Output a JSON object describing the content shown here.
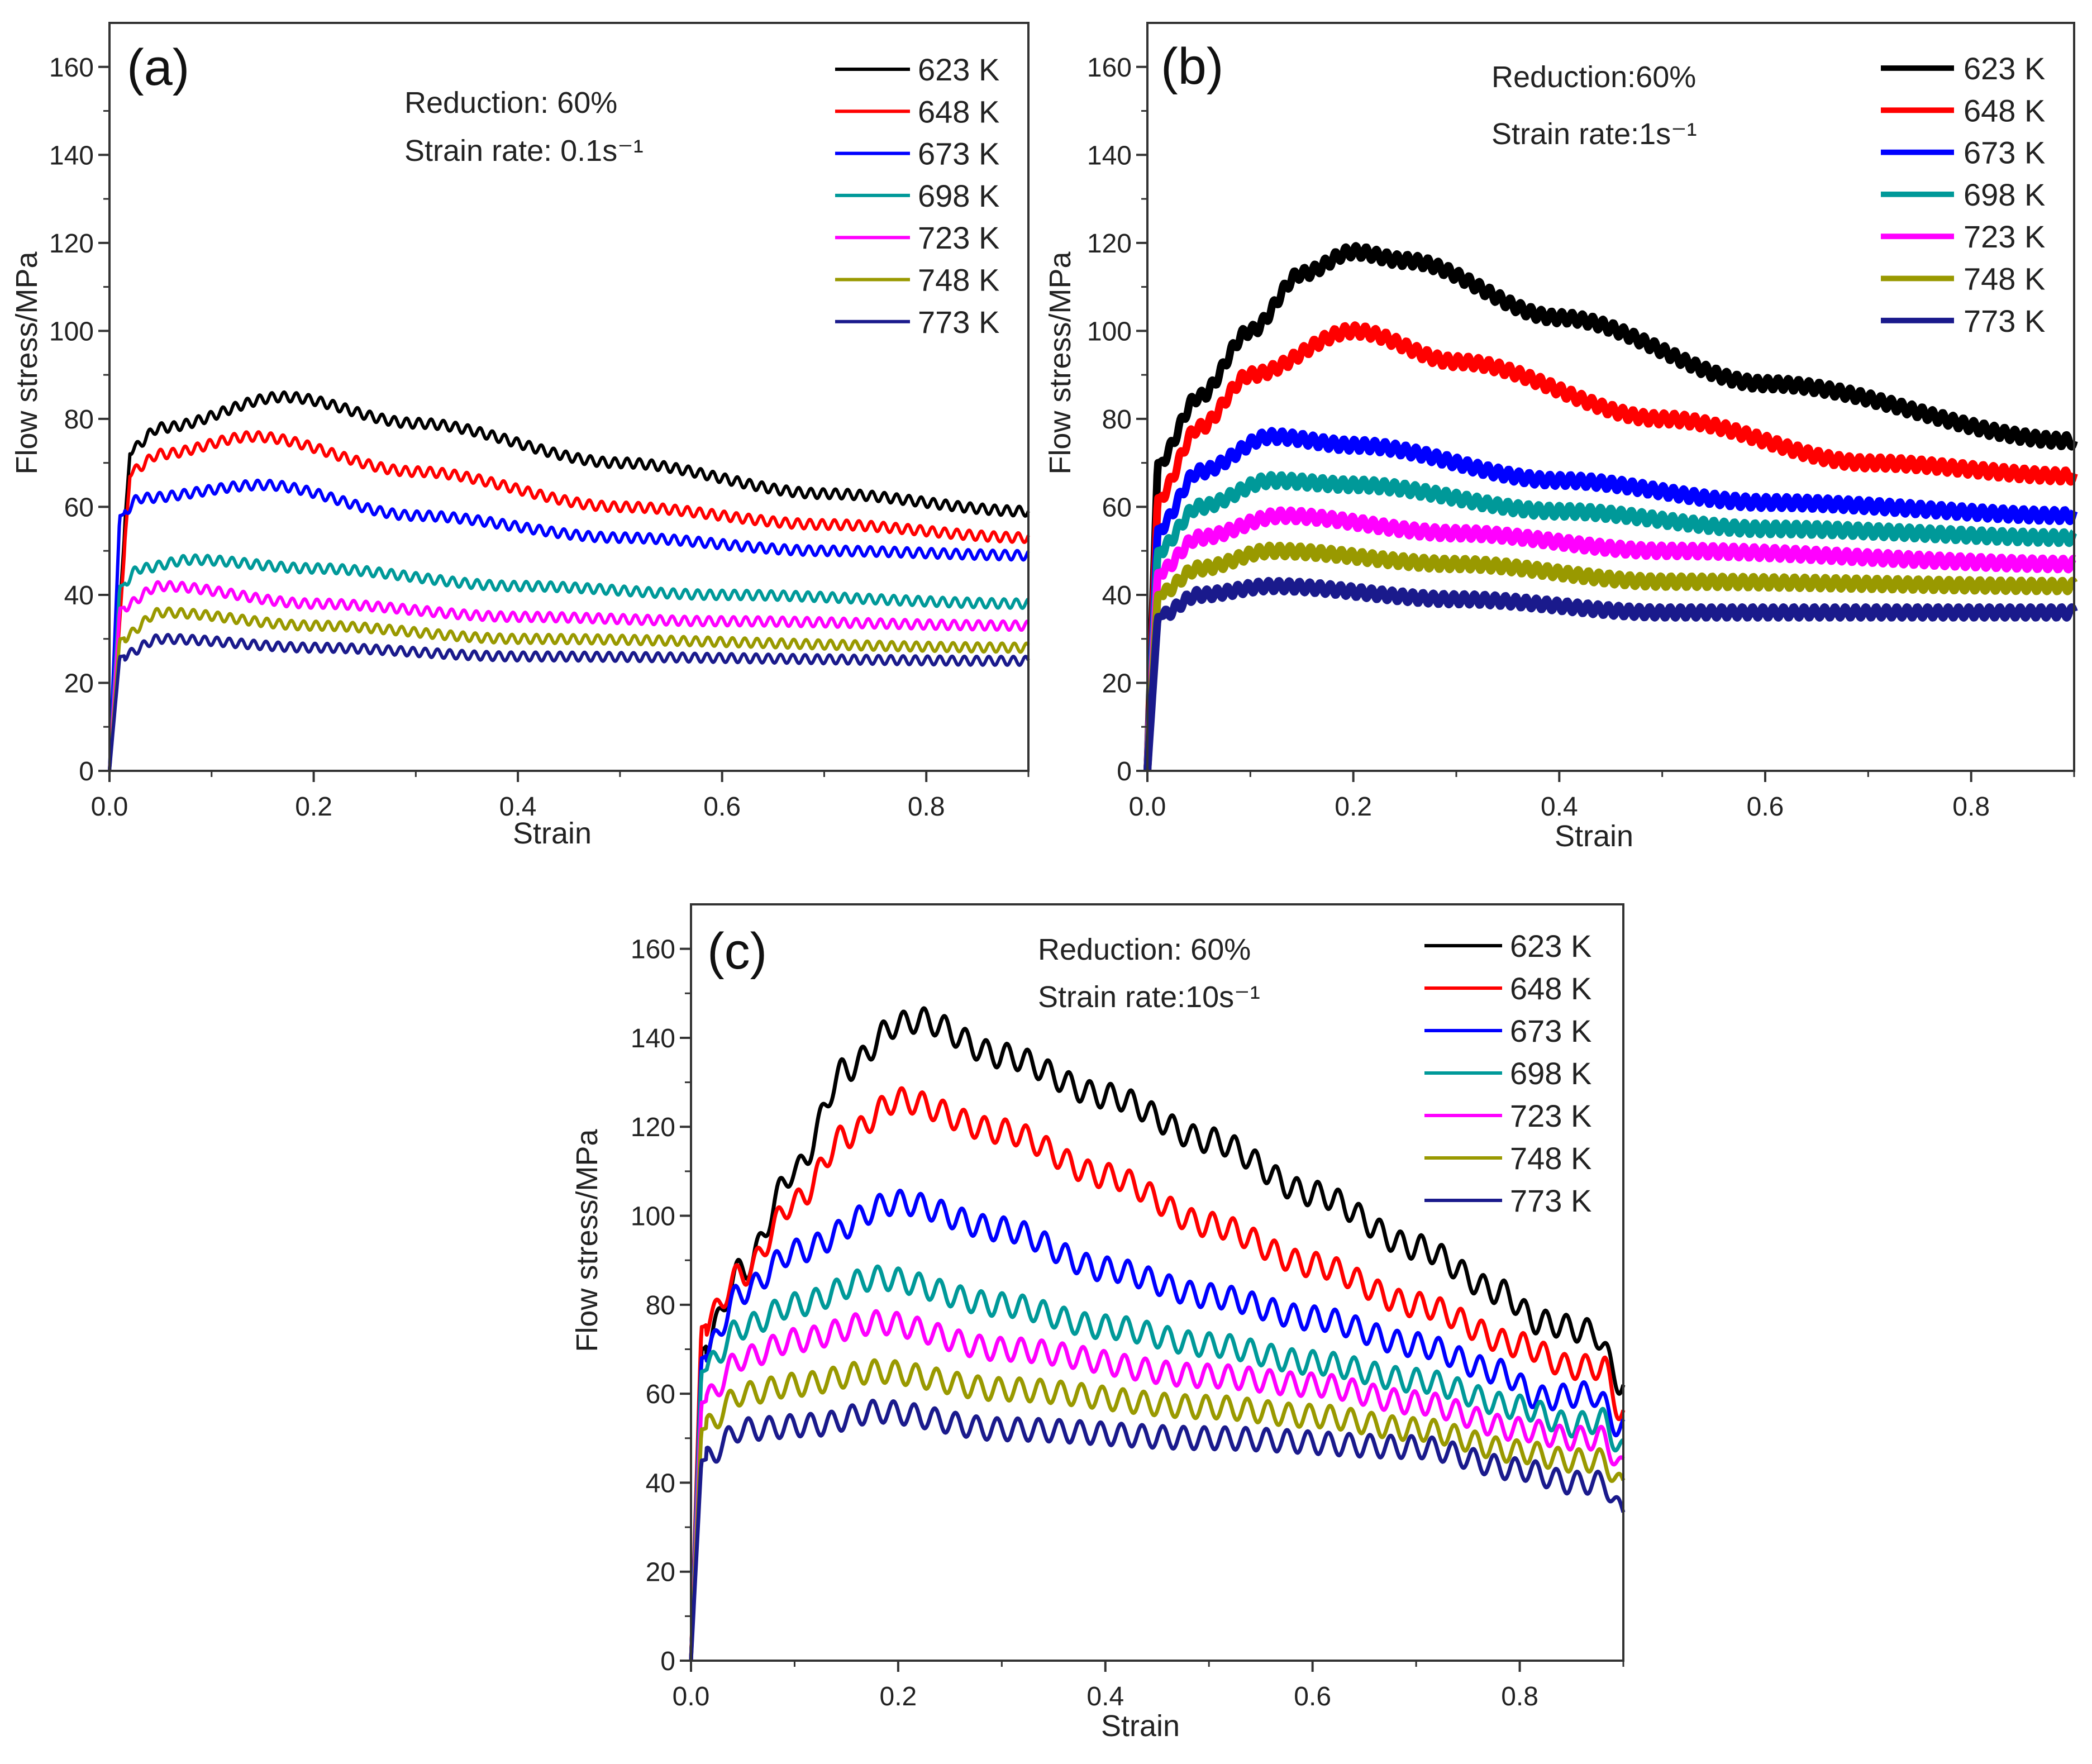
{
  "chart_data": [
    {
      "type": "line",
      "panel_label": "(a)",
      "annotations": [
        "Reduction: 60%",
        "Strain rate: 0.1s⁻¹"
      ],
      "xlabel": "Strain",
      "ylabel": "Flow stress/MPa",
      "xlim": [
        0,
        0.9
      ],
      "ylim": [
        0,
        170
      ],
      "xticks": [
        0.0,
        0.2,
        0.4,
        0.6,
        0.8
      ],
      "xtick_labels": [
        "0.0",
        "0.2",
        "0.4",
        "0.6",
        "0.8"
      ],
      "yticks": [
        0,
        20,
        40,
        60,
        80,
        100,
        120,
        140,
        160
      ],
      "ytick_labels": [
        "0",
        "20",
        "40",
        "60",
        "80",
        "100",
        "120",
        "140",
        "160"
      ],
      "legend_position": "top-right",
      "ripple": {
        "amplitude": 1.0,
        "period": 0.012
      },
      "series": [
        {
          "name": "623 K",
          "color": "#000000",
          "points": [
            [
              0,
              0
            ],
            [
              0.02,
              73
            ],
            [
              0.05,
              78
            ],
            [
              0.17,
              85
            ],
            [
              0.3,
              79
            ],
            [
              0.5,
              70
            ],
            [
              0.7,
              63
            ],
            [
              0.9,
              59
            ]
          ]
        },
        {
          "name": "648 K",
          "color": "#ff0000",
          "points": [
            [
              0,
              0
            ],
            [
              0.02,
              68
            ],
            [
              0.05,
              72
            ],
            [
              0.14,
              76
            ],
            [
              0.3,
              68
            ],
            [
              0.5,
              60
            ],
            [
              0.7,
              56
            ],
            [
              0.9,
              53
            ]
          ]
        },
        {
          "name": "673 K",
          "color": "#0000ff",
          "points": [
            [
              0,
              0
            ],
            [
              0.01,
              58
            ],
            [
              0.03,
              62
            ],
            [
              0.15,
              65
            ],
            [
              0.3,
              58
            ],
            [
              0.5,
              53
            ],
            [
              0.7,
              50
            ],
            [
              0.9,
              49
            ]
          ]
        },
        {
          "name": "698 K",
          "color": "#009999",
          "points": [
            [
              0,
              0
            ],
            [
              0.01,
              42
            ],
            [
              0.03,
              46
            ],
            [
              0.08,
              48
            ],
            [
              0.2,
              46
            ],
            [
              0.4,
              42
            ],
            [
              0.6,
              40
            ],
            [
              0.9,
              38
            ]
          ]
        },
        {
          "name": "723 K",
          "color": "#ff00ff",
          "points": [
            [
              0,
              0
            ],
            [
              0.01,
              37
            ],
            [
              0.05,
              42
            ],
            [
              0.2,
              38
            ],
            [
              0.4,
              35
            ],
            [
              0.6,
              34
            ],
            [
              0.9,
              33
            ]
          ]
        },
        {
          "name": "748 K",
          "color": "#999900",
          "points": [
            [
              0,
              0
            ],
            [
              0.01,
              30
            ],
            [
              0.05,
              36
            ],
            [
              0.2,
              33
            ],
            [
              0.4,
              30
            ],
            [
              0.9,
              28
            ]
          ]
        },
        {
          "name": "773 K",
          "color": "#1a1a8c",
          "points": [
            [
              0,
              0
            ],
            [
              0.01,
              26
            ],
            [
              0.05,
              30
            ],
            [
              0.2,
              28
            ],
            [
              0.4,
              26
            ],
            [
              0.9,
              25
            ]
          ]
        }
      ]
    },
    {
      "type": "line",
      "panel_label": "(b)",
      "annotations": [
        "Reduction:60%",
        "Strain rate:1s⁻¹"
      ],
      "xlabel": "Strain",
      "ylabel": "Flow stress/MPa",
      "xlim": [
        0,
        0.9
      ],
      "ylim": [
        0,
        170
      ],
      "xticks": [
        0.0,
        0.2,
        0.4,
        0.6,
        0.8
      ],
      "xtick_labels": [
        "0.0",
        "0.2",
        "0.4",
        "0.6",
        "0.8"
      ],
      "yticks": [
        0,
        20,
        40,
        60,
        80,
        100,
        120,
        140,
        160
      ],
      "ytick_labels": [
        "0",
        "20",
        "40",
        "60",
        "80",
        "100",
        "120",
        "140",
        "160"
      ],
      "legend_position": "top-right",
      "ripple": {
        "amplitude": 1.2,
        "period": 0.01
      },
      "series": [
        {
          "name": "623 K",
          "color": "#000000",
          "points": [
            [
              0,
              0
            ],
            [
              0.01,
              70
            ],
            [
              0.05,
              85
            ],
            [
              0.1,
              100
            ],
            [
              0.15,
              113
            ],
            [
              0.2,
              118
            ],
            [
              0.25,
              116
            ],
            [
              0.4,
              103
            ],
            [
              0.6,
              88
            ],
            [
              0.9,
              75
            ]
          ]
        },
        {
          "name": "648 K",
          "color": "#ff0000",
          "points": [
            [
              0,
              0
            ],
            [
              0.01,
              62
            ],
            [
              0.05,
              78
            ],
            [
              0.1,
              90
            ],
            [
              0.2,
              100
            ],
            [
              0.3,
              93
            ],
            [
              0.5,
              80
            ],
            [
              0.7,
              70
            ],
            [
              0.9,
              67
            ]
          ]
        },
        {
          "name": "673 K",
          "color": "#0000ff",
          "points": [
            [
              0,
              0
            ],
            [
              0.01,
              55
            ],
            [
              0.05,
              68
            ],
            [
              0.12,
              76
            ],
            [
              0.2,
              74
            ],
            [
              0.4,
              66
            ],
            [
              0.6,
              61
            ],
            [
              0.9,
              58
            ]
          ]
        },
        {
          "name": "698 K",
          "color": "#009999",
          "points": [
            [
              0,
              0
            ],
            [
              0.01,
              50
            ],
            [
              0.05,
              60
            ],
            [
              0.12,
              66
            ],
            [
              0.2,
              65
            ],
            [
              0.4,
              59
            ],
            [
              0.6,
              55
            ],
            [
              0.9,
              53
            ]
          ]
        },
        {
          "name": "723 K",
          "color": "#ff00ff",
          "points": [
            [
              0,
              0
            ],
            [
              0.01,
              45
            ],
            [
              0.05,
              53
            ],
            [
              0.13,
              58
            ],
            [
              0.3,
              54
            ],
            [
              0.5,
              50
            ],
            [
              0.9,
              47
            ]
          ]
        },
        {
          "name": "748 K",
          "color": "#999900",
          "points": [
            [
              0,
              0
            ],
            [
              0.01,
              40
            ],
            [
              0.05,
              46
            ],
            [
              0.12,
              50
            ],
            [
              0.3,
              47
            ],
            [
              0.5,
              43
            ],
            [
              0.9,
              42
            ]
          ]
        },
        {
          "name": "773 K",
          "color": "#1a1a8c",
          "points": [
            [
              0,
              0
            ],
            [
              0.01,
              35
            ],
            [
              0.05,
              40
            ],
            [
              0.12,
              42
            ],
            [
              0.3,
              39
            ],
            [
              0.5,
              36
            ],
            [
              0.9,
              36
            ]
          ]
        }
      ]
    },
    {
      "type": "line",
      "panel_label": "(c)",
      "annotations": [
        "Reduction: 60%",
        "Strain rate:10s⁻¹"
      ],
      "xlabel": "Strain",
      "ylabel": "Flow stress/MPa",
      "xlim": [
        0,
        0.9
      ],
      "ylim": [
        0,
        170
      ],
      "xticks": [
        0.0,
        0.2,
        0.4,
        0.6,
        0.8
      ],
      "xtick_labels": [
        "0.0",
        "0.2",
        "0.4",
        "0.6",
        "0.8"
      ],
      "yticks": [
        0,
        20,
        40,
        60,
        80,
        100,
        120,
        140,
        160
      ],
      "ytick_labels": [
        "0",
        "20",
        "40",
        "60",
        "80",
        "100",
        "120",
        "140",
        "160"
      ],
      "legend_position": "top-right",
      "ripple": {
        "amplitude": 2.5,
        "period": 0.02
      },
      "series": [
        {
          "name": "623 K",
          "color": "#000000",
          "points": [
            [
              0,
              0
            ],
            [
              0.01,
              70
            ],
            [
              0.05,
              88
            ],
            [
              0.1,
              110
            ],
            [
              0.15,
              133
            ],
            [
              0.2,
              143
            ],
            [
              0.22,
              144
            ],
            [
              0.3,
              136
            ],
            [
              0.4,
              127
            ],
            [
              0.5,
              117
            ],
            [
              0.6,
              105
            ],
            [
              0.7,
              93
            ],
            [
              0.78,
              83
            ],
            [
              0.82,
              76
            ],
            [
              0.87,
              74
            ],
            [
              0.9,
              62
            ]
          ]
        },
        {
          "name": "648 K",
          "color": "#ff0000",
          "points": [
            [
              0,
              0
            ],
            [
              0.01,
              75
            ],
            [
              0.05,
              87
            ],
            [
              0.1,
              103
            ],
            [
              0.15,
              118
            ],
            [
              0.2,
              126
            ],
            [
              0.3,
              119
            ],
            [
              0.4,
              109
            ],
            [
              0.5,
              98
            ],
            [
              0.6,
              89
            ],
            [
              0.7,
              80
            ],
            [
              0.8,
              71
            ],
            [
              0.85,
              66
            ],
            [
              0.88,
              66
            ],
            [
              0.9,
              55
            ]
          ]
        },
        {
          "name": "673 K",
          "color": "#0000ff",
          "points": [
            [
              0,
              0
            ],
            [
              0.01,
              68
            ],
            [
              0.05,
              83
            ],
            [
              0.1,
              92
            ],
            [
              0.2,
              103
            ],
            [
              0.3,
              97
            ],
            [
              0.4,
              88
            ],
            [
              0.5,
              82
            ],
            [
              0.6,
              77
            ],
            [
              0.7,
              71
            ],
            [
              0.78,
              65
            ],
            [
              0.82,
              59
            ],
            [
              0.87,
              60
            ],
            [
              0.9,
              52
            ]
          ]
        },
        {
          "name": "698 K",
          "color": "#009999",
          "points": [
            [
              0,
              0
            ],
            [
              0.01,
              65
            ],
            [
              0.05,
              75
            ],
            [
              0.1,
              80
            ],
            [
              0.18,
              86
            ],
            [
              0.3,
              80
            ],
            [
              0.4,
              75
            ],
            [
              0.5,
              71
            ],
            [
              0.6,
              67
            ],
            [
              0.7,
              63
            ],
            [
              0.8,
              57
            ],
            [
              0.85,
              53
            ],
            [
              0.88,
              54
            ],
            [
              0.9,
              47
            ]
          ]
        },
        {
          "name": "723 K",
          "color": "#ff00ff",
          "points": [
            [
              0,
              0
            ],
            [
              0.01,
              58
            ],
            [
              0.05,
              68
            ],
            [
              0.1,
              72
            ],
            [
              0.18,
              76
            ],
            [
              0.3,
              70
            ],
            [
              0.5,
              64
            ],
            [
              0.6,
              62
            ],
            [
              0.7,
              58
            ],
            [
              0.8,
              52
            ],
            [
              0.85,
              50
            ],
            [
              0.88,
              50
            ],
            [
              0.9,
              43
            ]
          ]
        },
        {
          "name": "748 K",
          "color": "#999900",
          "points": [
            [
              0,
              0
            ],
            [
              0.01,
              52
            ],
            [
              0.05,
              60
            ],
            [
              0.1,
              62
            ],
            [
              0.18,
              65
            ],
            [
              0.3,
              61
            ],
            [
              0.5,
              57
            ],
            [
              0.6,
              55
            ],
            [
              0.7,
              52
            ],
            [
              0.8,
              47
            ],
            [
              0.85,
              45
            ],
            [
              0.88,
              45
            ],
            [
              0.9,
              39
            ]
          ]
        },
        {
          "name": "773 K",
          "color": "#1a1a8c",
          "points": [
            [
              0,
              0
            ],
            [
              0.01,
              45
            ],
            [
              0.05,
              52
            ],
            [
              0.12,
              53
            ],
            [
              0.18,
              56
            ],
            [
              0.3,
              52
            ],
            [
              0.5,
              50
            ],
            [
              0.7,
              48
            ],
            [
              0.8,
              43
            ],
            [
              0.85,
              40
            ],
            [
              0.88,
              40
            ],
            [
              0.9,
              33
            ]
          ]
        }
      ]
    }
  ]
}
